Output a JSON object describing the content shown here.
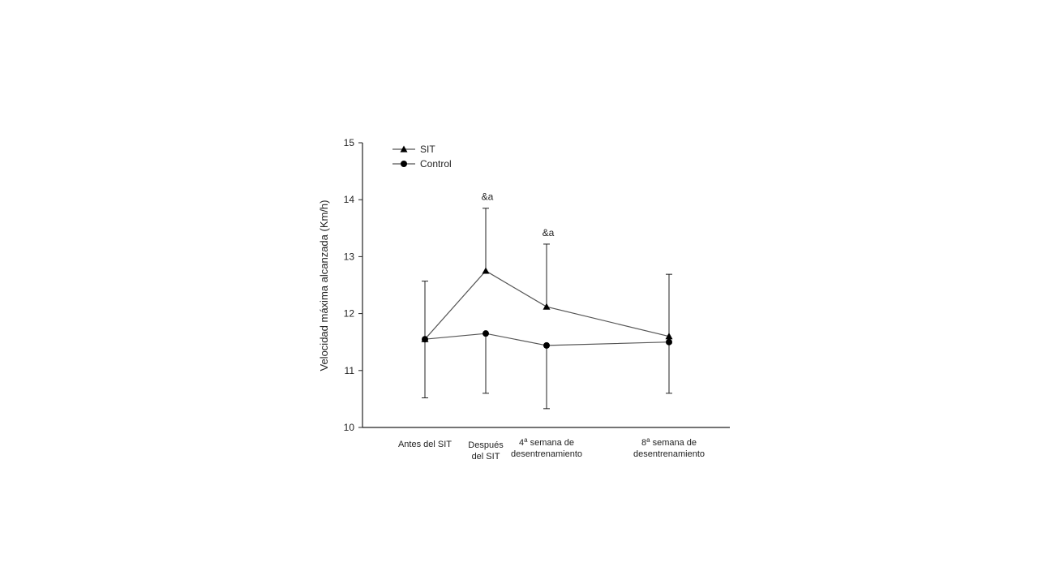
{
  "chart_data": {
    "type": "line",
    "title": "",
    "xlabel": "",
    "ylabel": "Velocidad  máxima alcanzada (Km/h)",
    "ylim": [
      10,
      15
    ],
    "yticks": [
      "10",
      "11",
      "12",
      "13",
      "14",
      "15"
    ],
    "grid": false,
    "legend_position": "top-left",
    "categories": [
      [
        "Antes del SIT"
      ],
      [
        "Después",
        "del SIT"
      ],
      [
        "4ª semana de",
        "desentrenamiento"
      ],
      [
        "8ª semana de",
        "desentrenamiento"
      ]
    ],
    "series": [
      {
        "name": "SIT",
        "marker": "triangle",
        "values": [
          11.55,
          12.75,
          12.12,
          11.6
        ],
        "error_upper": [
          12.57,
          13.85,
          13.22,
          12.69
        ],
        "error_lower": [
          null,
          null,
          null,
          null
        ],
        "annotations": [
          "",
          "&a",
          "&a",
          ""
        ]
      },
      {
        "name": "Control",
        "marker": "circle",
        "values": [
          11.55,
          11.65,
          11.44,
          11.5
        ],
        "error_upper": [
          null,
          null,
          null,
          null
        ],
        "error_lower": [
          10.52,
          10.6,
          10.33,
          10.6
        ],
        "annotations": [
          "",
          "",
          "",
          ""
        ]
      }
    ],
    "colors": {
      "line": "#555555",
      "marker": "#000000",
      "axis": "#222222"
    }
  }
}
